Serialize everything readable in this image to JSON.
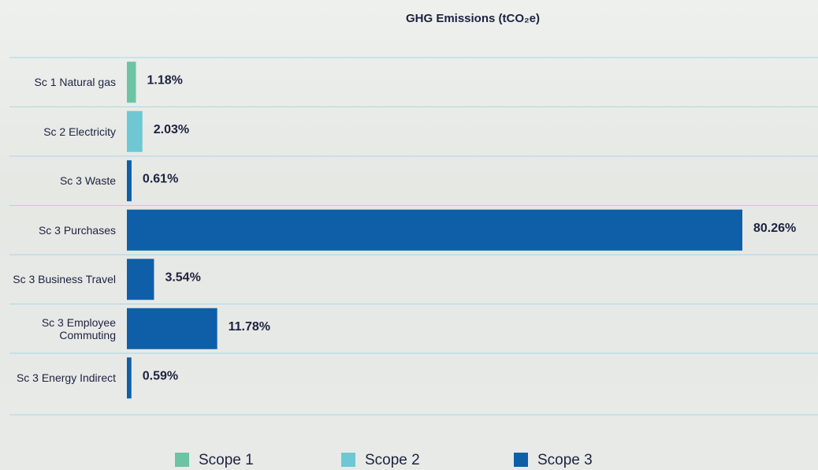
{
  "chart_data": {
    "type": "hbar",
    "title": "GHG Emissions (tCO₂e)",
    "categories": [
      "Sc 1 Natural gas",
      "Sc 2 Electricity",
      "Sc 3 Waste",
      "Sc 3  Purchases",
      "Sc 3 Business Travel",
      "Sc 3 Employee Commuting",
      "Sc 3 Energy Indirect"
    ],
    "values": [
      1.18,
      2.03,
      0.61,
      80.26,
      3.54,
      11.78,
      0.59
    ],
    "value_labels": [
      "1.18%",
      "2.03%",
      "0.61%",
      "80.26%",
      "3.54%",
      "11.78%",
      "0.59%"
    ],
    "colors": [
      "#6cc4a4",
      "#6ec8d4",
      "#0f5fa8",
      "#0f5fa8",
      "#0f5fa8",
      "#0f5fa8",
      "#0f5fa8"
    ],
    "legend": [
      {
        "name": "Scope 1",
        "color": "#6cc4a4"
      },
      {
        "name": "Scope 2",
        "color": "#6ec8d4"
      },
      {
        "name": "Scope 3",
        "color": "#0f5fa8"
      }
    ]
  }
}
